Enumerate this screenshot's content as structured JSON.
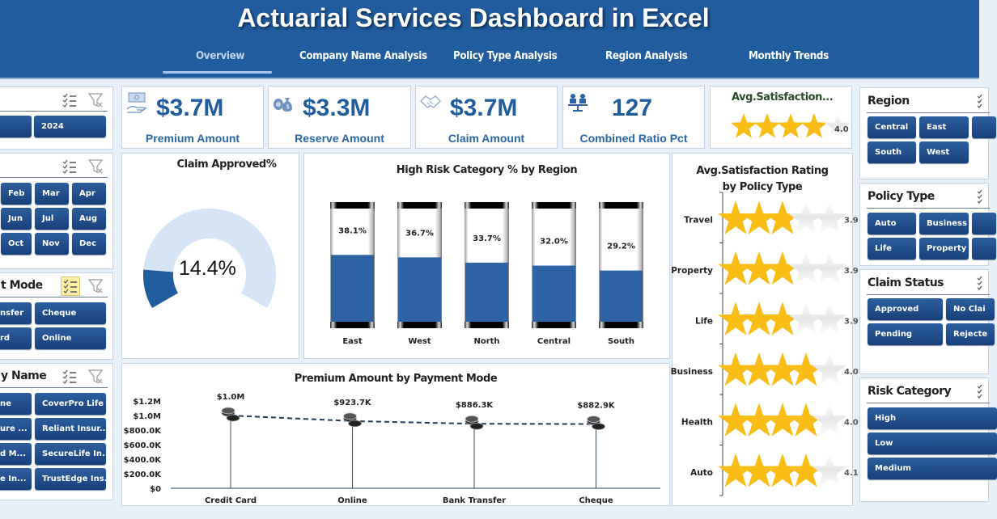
{
  "header": {
    "title": "Actuarial Services Dashboard in Excel",
    "tabs": [
      {
        "label": "Overview",
        "active": true
      },
      {
        "label": "Company Name Analysis",
        "active": false
      },
      {
        "label": "Policy Type Analysis",
        "active": false
      },
      {
        "label": "Region Analysis",
        "active": false
      },
      {
        "label": "Monthly Trends",
        "active": false
      }
    ]
  },
  "left_slicers": {
    "year": {
      "title": "",
      "buttons": [
        "",
        "2024"
      ]
    },
    "month": {
      "title": "",
      "buttons": [
        "",
        "Feb",
        "Mar",
        "Apr",
        "",
        "Jun",
        "Jul",
        "Aug",
        "",
        "Oct",
        "Nov",
        "Dec"
      ]
    },
    "payment_mode": {
      "title": "t Mode",
      "buttons": [
        "nsfer",
        "Cheque",
        "rd",
        "Online"
      ]
    },
    "company_name": {
      "title": "y Name",
      "buttons": [
        "ne",
        "CoverPro Life",
        "ure ...",
        "Reliant Insur...",
        "d M...",
        "SecureLife In...",
        "e In...",
        "TrustEdge Ins..."
      ]
    }
  },
  "kpis": [
    {
      "icon": "money-hand-icon",
      "value": "$3.7M",
      "label": "Premium Amount"
    },
    {
      "icon": "money-bag-icon",
      "value": "$3.3M",
      "label": "Reserve Amount"
    },
    {
      "icon": "handshake-icon",
      "value": "$3.7M",
      "label": "Claim Amount"
    },
    {
      "icon": "balance-scale-icon",
      "value": "127",
      "label": "Combined Ratio Pct"
    }
  ],
  "satisfaction_kpi": {
    "title": "Avg.Satisfaction...",
    "rating": 4.0,
    "value_label": "4.0",
    "max_stars": 5
  },
  "chart_data": [
    {
      "type": "pie",
      "title": "Claim Approved%",
      "value": 14.4,
      "value_label": "14.4%",
      "colors": {
        "fill": "#215d9e",
        "track": "#d6e5f5"
      }
    },
    {
      "type": "bar",
      "title": "High Risk Category % by Region",
      "categories": [
        "East",
        "West",
        "North",
        "Central",
        "South"
      ],
      "values": [
        38.1,
        36.7,
        33.7,
        32.0,
        29.2
      ],
      "labels": [
        "38.1%",
        "36.7%",
        "33.7%",
        "32.0%",
        "29.2%"
      ],
      "ylim": [
        0,
        100
      ],
      "colors": {
        "fill": "#2d62a3"
      }
    },
    {
      "type": "bar",
      "title": "Avg.Satisfaction Rating by Policy Type",
      "categories": [
        "Travel",
        "Property",
        "Life",
        "Business",
        "Health",
        "Auto"
      ],
      "values": [
        3.9,
        3.9,
        3.9,
        4.0,
        4.0,
        4.1
      ],
      "labels": [
        "3.9",
        "3.9",
        "3.9",
        "4.0",
        "4.0",
        "4.1"
      ],
      "xlim": [
        0,
        5
      ],
      "colors": {
        "star": "#f9bd16",
        "empty": "#eeeeee"
      }
    },
    {
      "type": "line",
      "title": "Premium Amount by Payment Mode",
      "categories": [
        "Credit Card",
        "Online",
        "Bank Transfer",
        "Cheque"
      ],
      "values": [
        1000000,
        923700,
        886300,
        882900
      ],
      "labels": [
        "$1.0M",
        "$923.7K",
        "$886.3K",
        "$882.9K"
      ],
      "yticks": [
        "$0",
        "$200.0K",
        "$400.0K",
        "$600.0K",
        "$800.0K",
        "$1.0M",
        "$1.2M"
      ],
      "ylim": [
        0,
        1200000
      ],
      "colors": {
        "line": "#1f3b5c"
      }
    }
  ],
  "right_slicers": {
    "region": {
      "title": "Region",
      "buttons": [
        "Central",
        "East",
        "",
        "South",
        "West"
      ]
    },
    "policy_type": {
      "title": "Policy Type",
      "buttons": [
        "Auto",
        "Business",
        "",
        "Life",
        "Property",
        ""
      ]
    },
    "claim_status": {
      "title": "Claim Status",
      "buttons": [
        "Approved",
        "No Clai",
        "Pending",
        "Rejecte"
      ]
    },
    "risk_category": {
      "title": "Risk Category",
      "buttons": [
        "High",
        "Low",
        "Medium"
      ]
    }
  }
}
